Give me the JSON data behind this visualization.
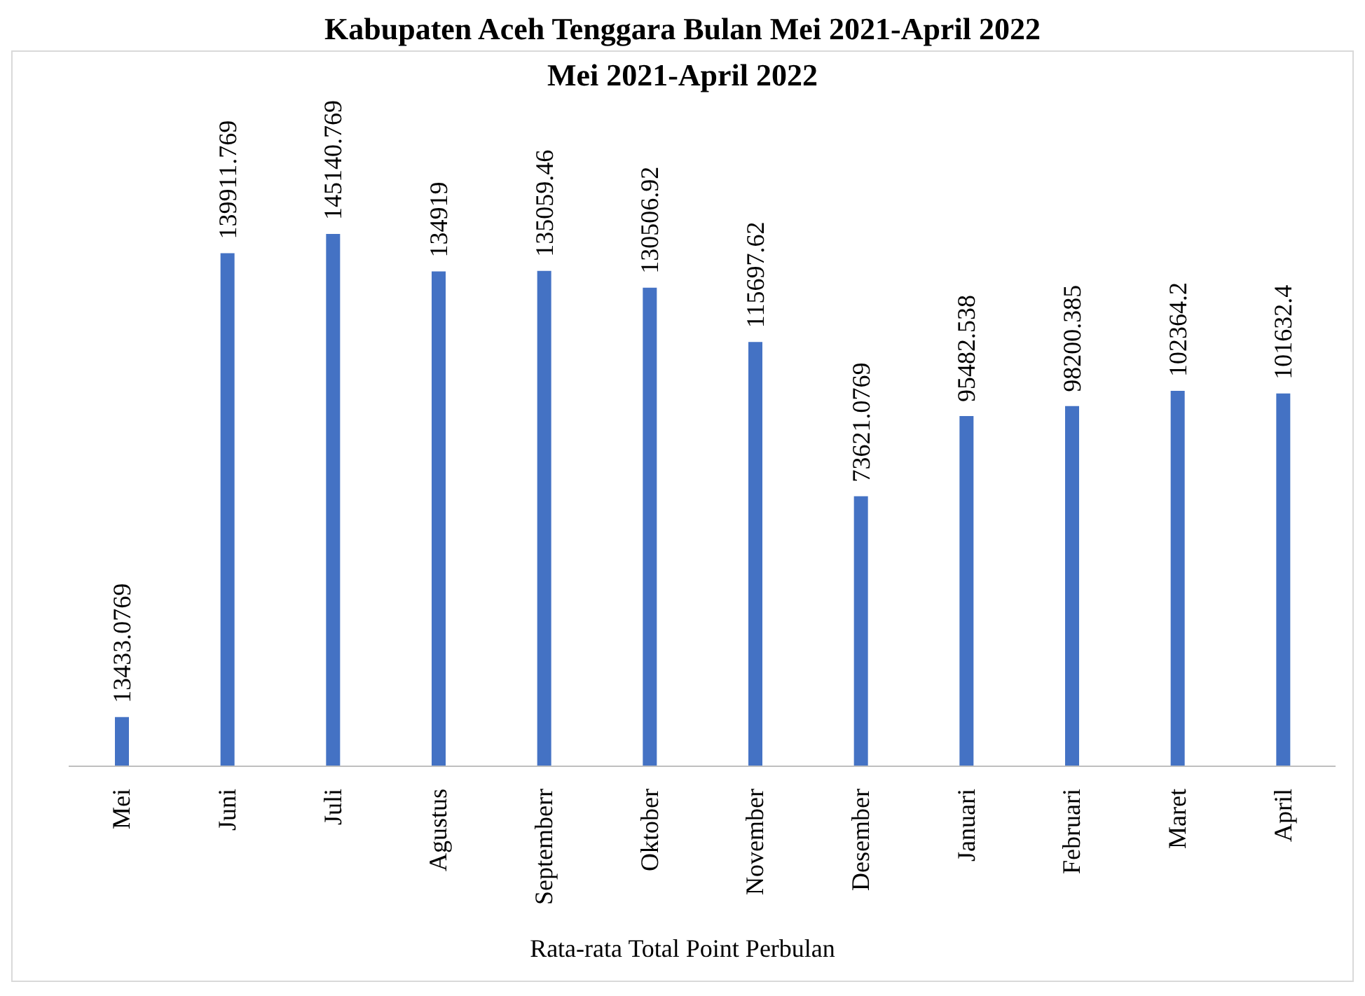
{
  "chart_data": {
    "type": "bar",
    "title": "Kabupaten Aceh Tenggara Bulan Mei 2021-April 2022",
    "subtitle": "Mei 2021-April 2022",
    "xlabel": "Rata-rata Total Point Perbulan",
    "categories": [
      "Mei",
      "Juni",
      "Juli",
      "Agustus",
      "Septemberr",
      "Oktober",
      "November",
      "Desember",
      "Januari",
      "Februari",
      "Maret",
      "April"
    ],
    "values": [
      13433.0769,
      139911.769,
      145140.769,
      134919,
      135059.46,
      130506.92,
      115697.62,
      73621.0769,
      95482.538,
      98200.385,
      102364.2,
      101632.4
    ],
    "color": "#4472c4",
    "data_labels": true
  }
}
